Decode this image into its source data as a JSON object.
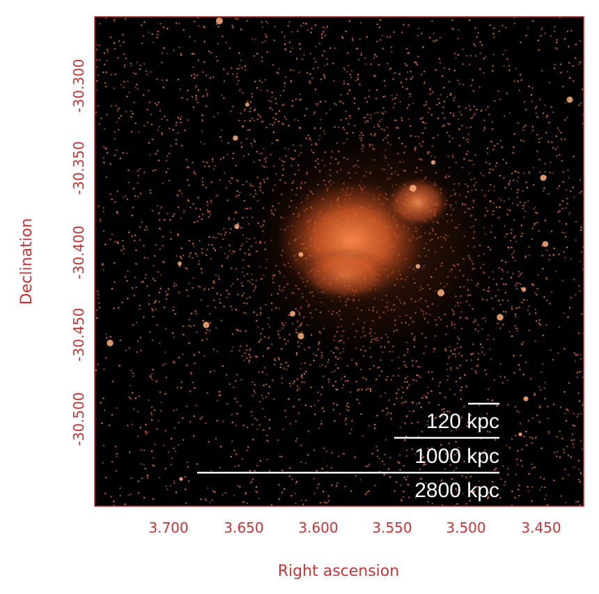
{
  "figure": {
    "xlabel": "Right ascension",
    "ylabel": "Declination",
    "x_ticks": [
      "3.700",
      "3.650",
      "3.600",
      "3.550",
      "3.500",
      "3.450"
    ],
    "y_ticks": [
      "-30.300",
      "-30.350",
      "-30.400",
      "-30.450",
      "-30.500"
    ],
    "colors": {
      "axis": "#cc3333",
      "frame": "#cc2222",
      "background": "#000000",
      "emission": "#ff7a3a",
      "scale_bar": "#ffffff"
    }
  },
  "scale_bars": [
    {
      "label": "120 kpc"
    },
    {
      "label": "1000 kpc"
    },
    {
      "label": "2800 kpc"
    }
  ]
}
